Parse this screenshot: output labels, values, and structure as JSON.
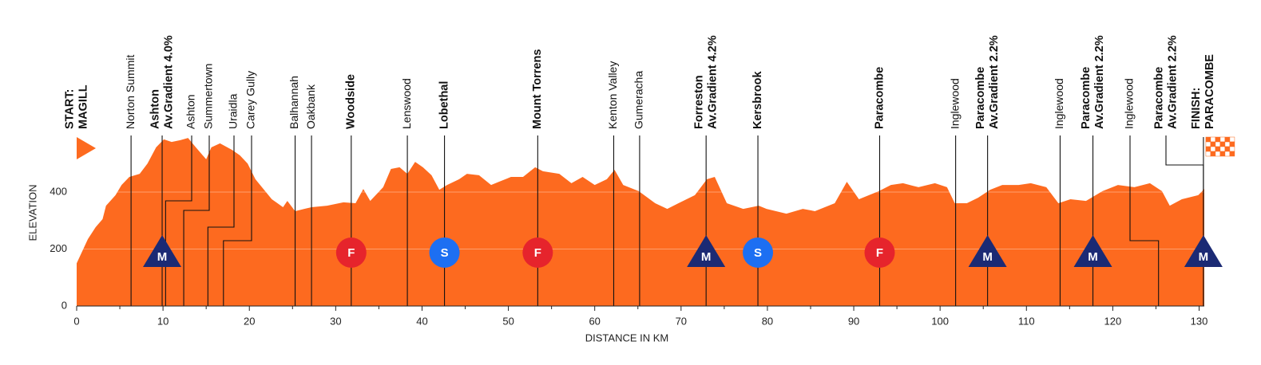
{
  "chart_data": {
    "type": "area",
    "x_label": "DISTANCE IN KM",
    "y_label": "ELEVATION",
    "color": "#fd6a1f",
    "xlim": [
      0,
      130.6
    ],
    "xticks": [
      0,
      10,
      20,
      30,
      40,
      50,
      60,
      70,
      80,
      90,
      100,
      110,
      120,
      130
    ],
    "xminorticks": [
      5,
      15,
      25,
      35,
      45,
      55,
      65,
      75,
      85,
      95,
      105,
      115,
      125
    ],
    "ylim": [
      0,
      600
    ],
    "yticks": [
      0,
      200,
      400
    ],
    "grid": true,
    "marker_colors": {
      "M": "#1b2a74",
      "F": "#e6242c",
      "S": "#1d6ff2"
    },
    "profile": {
      "km": [
        0,
        1.3,
        2.2,
        3,
        3.4,
        4.5,
        5.2,
        6.1,
        7.3,
        8.2,
        9.2,
        10.1,
        11,
        12,
        12.9,
        13.8,
        15,
        15.6,
        16.6,
        18,
        18.9,
        19.8,
        20.7,
        22.6,
        23.9,
        24.4,
        25.3,
        27.2,
        29,
        30.9,
        32.3,
        33.2,
        34,
        35.5,
        36.4,
        37.4,
        38.3,
        39.2,
        40.1,
        41.1,
        42,
        42.9,
        44.3,
        45.2,
        46.6,
        48,
        48.9,
        50.3,
        51.7,
        53.1,
        54,
        55.9,
        57.3,
        58.6,
        60,
        61.4,
        62.3,
        63.3,
        65.1,
        67,
        68.4,
        69.7,
        71.6,
        73,
        73.9,
        75.3,
        77.2,
        79,
        79.9,
        82.2,
        84.1,
        85.5,
        87.8,
        89.2,
        90.6,
        92.9,
        94.3,
        95.7,
        97.5,
        99.4,
        100.8,
        101.7,
        103.1,
        104.4,
        105.8,
        107.2,
        109.1,
        110.5,
        112.3,
        113.7,
        115.1,
        116.9,
        118.8,
        120.6,
        122.5,
        124.3,
        125.7,
        126.6,
        128,
        129.9,
        130.6
      ],
      "elevation": [
        150,
        235,
        277,
        305,
        352,
        389,
        425,
        453,
        464,
        500,
        557,
        585,
        576,
        582,
        590,
        557,
        515,
        557,
        571,
        548,
        529,
        500,
        445,
        375,
        347,
        369,
        333,
        347,
        352,
        364,
        361,
        411,
        369,
        417,
        481,
        487,
        464,
        506,
        487,
        459,
        408,
        425,
        445,
        464,
        459,
        425,
        436,
        453,
        453,
        487,
        473,
        464,
        431,
        453,
        425,
        445,
        478,
        425,
        403,
        361,
        341,
        361,
        389,
        445,
        453,
        361,
        341,
        352,
        341,
        324,
        341,
        333,
        361,
        436,
        375,
        403,
        425,
        431,
        417,
        431,
        417,
        361,
        361,
        380,
        408,
        425,
        425,
        431,
        417,
        361,
        375,
        369,
        403,
        425,
        417,
        431,
        403,
        352,
        375,
        389,
        411
      ]
    },
    "locations": [
      {
        "lines": [
          "START:",
          "MAGILL"
        ],
        "km": 0,
        "bold": true,
        "flag": "start"
      },
      {
        "lines": [
          "Norton Summit"
        ],
        "km": 6.3
      },
      {
        "lines": [
          "Ashton",
          "Av.Gradient 4.0%"
        ],
        "km": 9.9,
        "bold": true,
        "marker": "M"
      },
      {
        "lines": [
          "Ashton"
        ],
        "km": 10.3
      },
      {
        "lines": [
          "Summertown"
        ],
        "km": 12.4
      },
      {
        "lines": [
          "Uraidla"
        ],
        "km": 15.2
      },
      {
        "lines": [
          "Carey Gully"
        ],
        "km": 17.0
      },
      {
        "lines": [
          "Balhannah"
        ],
        "km": 25.3
      },
      {
        "lines": [
          "Oakbank"
        ],
        "km": 27.2
      },
      {
        "lines": [
          "Woodside"
        ],
        "km": 31.8,
        "bold": true,
        "marker": "F"
      },
      {
        "lines": [
          "Lenswood"
        ],
        "km": 38.3
      },
      {
        "lines": [
          "Lobethal"
        ],
        "km": 42.6,
        "bold": true,
        "marker": "S"
      },
      {
        "lines": [
          "Mount Torrens"
        ],
        "km": 53.4,
        "bold": true,
        "marker": "F"
      },
      {
        "lines": [
          "Kenton Valley"
        ],
        "km": 62.2
      },
      {
        "lines": [
          "Gumeracha"
        ],
        "km": 65.2
      },
      {
        "lines": [
          "Forreston",
          "Av.Gradient 4.2%"
        ],
        "km": 72.9,
        "bold": true,
        "marker": "M"
      },
      {
        "lines": [
          "Kersbrook"
        ],
        "km": 78.9,
        "bold": true,
        "marker": "S"
      },
      {
        "lines": [
          "Paracombe"
        ],
        "km": 93.0,
        "bold": true,
        "marker": "F"
      },
      {
        "lines": [
          "Inglewood"
        ],
        "km": 101.8
      },
      {
        "lines": [
          "Paracombe",
          "Av.Gradient 2.2%"
        ],
        "km": 105.5,
        "bold": true,
        "marker": "M"
      },
      {
        "lines": [
          "Inglewood"
        ],
        "km": 113.9
      },
      {
        "lines": [
          "Paracombe",
          "Av.Gradient 2.2%"
        ],
        "km": 117.7,
        "bold": true,
        "marker": "M"
      },
      {
        "lines": [
          "Inglewood"
        ],
        "km": 125.3
      },
      {
        "lines": [
          "Paracombe",
          "Av.Gradient 2.2%"
        ],
        "km": 130.5,
        "bold": true,
        "marker": "M"
      },
      {
        "lines": [
          "FINISH:",
          "PARACOMBE"
        ],
        "km": 130.5,
        "bold": true,
        "flag": "finish"
      }
    ]
  }
}
